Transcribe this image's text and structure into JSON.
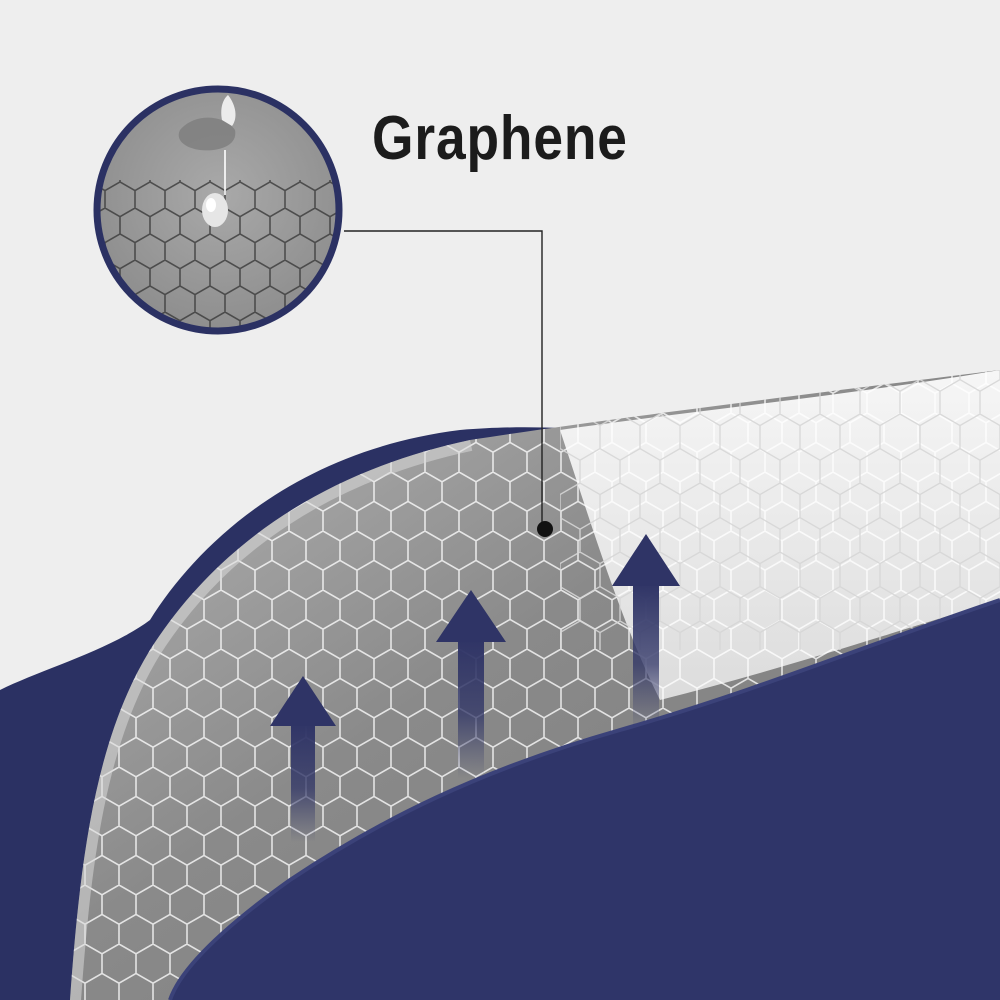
{
  "label": {
    "title": "Graphene"
  },
  "colors": {
    "background": "#eeeeee",
    "navy": "#2b3163",
    "fabric": "#8f8f8f",
    "foam": "#e9e9e9",
    "arrow": "#2f3466",
    "text": "#1c1c1c"
  },
  "icons": {
    "arrows": [
      "arrow-up-icon",
      "arrow-up-icon",
      "arrow-up-icon"
    ]
  }
}
